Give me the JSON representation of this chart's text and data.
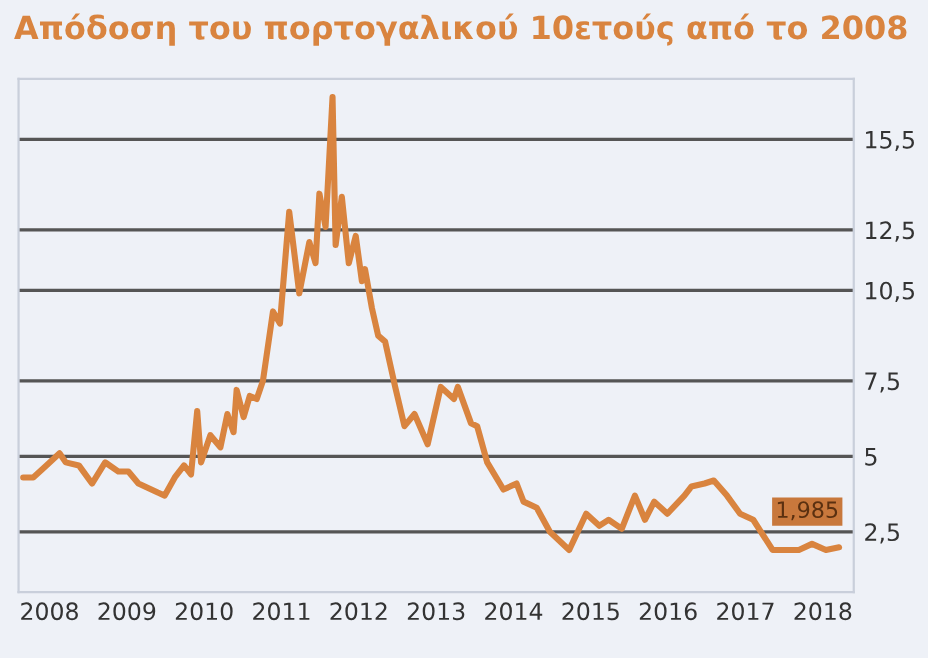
{
  "chart_data": {
    "type": "line",
    "title": "Απόδοση του πορτογαλικού 10ετούς από το 2008",
    "xlim": [
      2007.6,
      2018.4
    ],
    "xticks": [
      2008,
      2009,
      2010,
      2011,
      2012,
      2013,
      2014,
      2015,
      2016,
      2017,
      2018
    ],
    "ylim": [
      0.5,
      17.5
    ],
    "yticks": [
      {
        "value": 2.5,
        "label": "2,5"
      },
      5,
      {
        "value": 7.5,
        "label": "7,5"
      },
      {
        "value": 10.5,
        "label": "10,5"
      },
      {
        "value": 12.5,
        "label": "12,5"
      },
      {
        "value": 15.5,
        "label": "15,5"
      }
    ],
    "grid": "y",
    "marker": "none",
    "line_style": "solid",
    "annotations": [
      {
        "text": "1,985",
        "x": 2018.21,
        "y": 1.985
      }
    ],
    "series": [
      {
        "color": "#d9843f",
        "x": [
          2007.66,
          2007.79,
          2007.96,
          2008.13,
          2008.21,
          2008.38,
          2008.55,
          2008.72,
          2008.89,
          2009.02,
          2009.15,
          2009.4,
          2009.49,
          2009.62,
          2009.74,
          2009.83,
          2009.91,
          2009.96,
          2010.08,
          2010.21,
          2010.3,
          2010.38,
          2010.42,
          2010.51,
          2010.59,
          2010.68,
          2010.76,
          2010.89,
          2010.98,
          2011.1,
          2011.23,
          2011.36,
          2011.44,
          2011.49,
          2011.57,
          2011.66,
          2011.7,
          2011.78,
          2011.87,
          2011.96,
          2012.04,
          2012.08,
          2012.17,
          2012.25,
          2012.34,
          2012.47,
          2012.59,
          2012.72,
          2012.89,
          2013.06,
          2013.23,
          2013.28,
          2013.45,
          2013.53,
          2013.66,
          2013.87,
          2014.04,
          2014.13,
          2014.3,
          2014.47,
          2014.72,
          2014.94,
          2015.11,
          2015.23,
          2015.4,
          2015.57,
          2015.7,
          2015.82,
          2015.99,
          2016.21,
          2016.3,
          2016.47,
          2016.59,
          2016.76,
          2016.93,
          2017.1,
          2017.35,
          2017.52,
          2017.69,
          2017.86,
          2018.04,
          2018.21
        ],
        "values": [
          4.3,
          4.3,
          4.7,
          5.1,
          4.8,
          4.7,
          4.1,
          4.8,
          4.5,
          4.5,
          4.1,
          3.8,
          3.7,
          4.3,
          4.7,
          4.4,
          6.5,
          4.8,
          5.7,
          5.3,
          6.4,
          5.8,
          7.2,
          6.3,
          7.0,
          6.9,
          7.5,
          9.8,
          9.4,
          13.1,
          10.4,
          12.1,
          11.4,
          13.7,
          12.6,
          16.9,
          12.0,
          13.6,
          11.4,
          12.3,
          10.8,
          11.2,
          9.9,
          9.0,
          8.8,
          7.3,
          6.0,
          6.4,
          5.4,
          7.3,
          6.9,
          7.3,
          6.1,
          6.0,
          4.8,
          3.9,
          4.1,
          3.5,
          3.3,
          2.5,
          1.9,
          3.1,
          2.7,
          2.9,
          2.6,
          3.7,
          2.9,
          3.5,
          3.1,
          3.7,
          4.0,
          4.1,
          4.2,
          3.7,
          3.1,
          2.9,
          1.9,
          1.9,
          1.9,
          2.1,
          1.9,
          1.985
        ]
      }
    ]
  }
}
